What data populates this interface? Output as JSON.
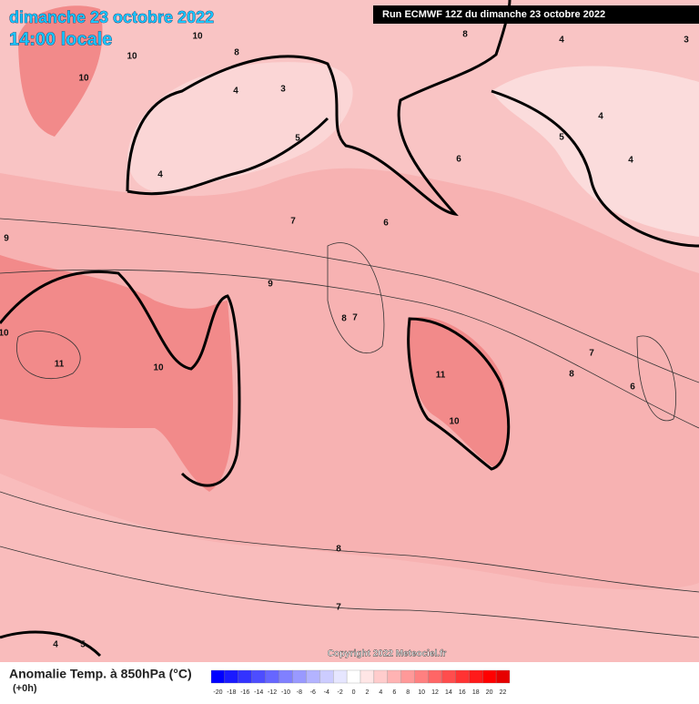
{
  "header": {
    "date": "dimanche 23 octobre 2022",
    "time": "14:00 locale",
    "run": "Run ECMWF 12Z du dimanche 23 octobre 2022"
  },
  "contour_labels": [
    10,
    10,
    10,
    8,
    3,
    4,
    4,
    5,
    8,
    4,
    3,
    6,
    4,
    5,
    4,
    7,
    6,
    9,
    9,
    10,
    11,
    10,
    8,
    7,
    11,
    10,
    7,
    8,
    6,
    8,
    7,
    4,
    5
  ],
  "copyright": "Copyright 2022 Meteociel.fr",
  "legend": {
    "title": "Anomalie Temp. à 850hPa (°C)",
    "subtitle": "(+0h)",
    "scale": [
      -20,
      -18,
      -16,
      -14,
      -12,
      -10,
      -8,
      -6,
      -4,
      -2,
      0,
      2,
      4,
      6,
      8,
      10,
      12,
      14,
      16,
      18,
      20,
      22
    ],
    "colors": [
      "#0000ff",
      "#1a1aff",
      "#3333ff",
      "#4d4dff",
      "#6666ff",
      "#8080ff",
      "#9999ff",
      "#b3b3ff",
      "#ccccff",
      "#e6e6ff",
      "#ffffff",
      "#ffe6e6",
      "#ffcccc",
      "#ffb3b3",
      "#ff9999",
      "#ff8080",
      "#ff6666",
      "#ff4d4d",
      "#ff3333",
      "#ff1a1a",
      "#ff0000",
      "#e60000"
    ]
  }
}
